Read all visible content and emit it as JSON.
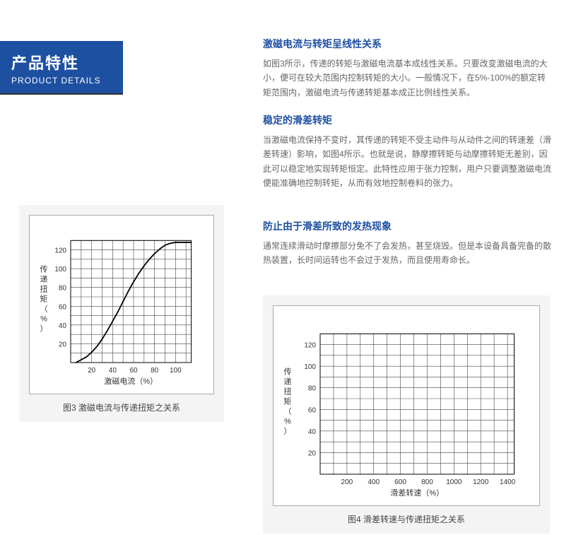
{
  "header": {
    "cn": "产品特性",
    "en": "PRODUCT DETAILS"
  },
  "sections": [
    {
      "title": "激磁电流与转矩呈线性关系",
      "body": "如图3所示，传递的转矩与激磁电流基本成线性关系。只要改变激磁电流的大小，便可在较大范围内控制转矩的大小。一般情况下，在5%-100%的额定转矩范围内，激磁电流与传递转矩基本成正比例线性关系。"
    },
    {
      "title": "稳定的滑差转矩",
      "body": "当激磁电流保持不变时，其传递的转矩不受主动件与从动件之间的转速差（滑差转速）影响，如图4所示。也就是说，静摩擦转矩与动摩擦转矩无差别，因此可以稳定地实现转矩恒定。此特性应用于张力控制，用户只要调整激磁电流便能准确地控制转矩，从而有效地控制卷料的张力。"
    },
    {
      "title": "防止由于滑差所致的发热现象",
      "body": "通常连续滑动时摩擦部分免不了会发热，甚至烧毁。但是本设备具备完备的散热装置，长时间运转也不会过于发热，而且使用寿命长。"
    }
  ],
  "chart3": {
    "caption": "图3 激磁电流与传递扭矩之关系",
    "xlabel": "激磁电流（%）",
    "ylabel": "传递扭矩（%）",
    "xticks": [
      20,
      40,
      60,
      80,
      100
    ],
    "yticks": [
      20,
      40,
      60,
      80,
      100,
      120
    ],
    "xlim": [
      0,
      120
    ],
    "ylim": [
      0,
      140
    ],
    "grid_color": "#444",
    "curve_color": "#000",
    "curve": [
      [
        5,
        0
      ],
      [
        10,
        3
      ],
      [
        15,
        6
      ],
      [
        20,
        11
      ],
      [
        25,
        17
      ],
      [
        30,
        25
      ],
      [
        35,
        34
      ],
      [
        40,
        44
      ],
      [
        45,
        54
      ],
      [
        50,
        65
      ],
      [
        55,
        76
      ],
      [
        60,
        86
      ],
      [
        65,
        95
      ],
      [
        70,
        103
      ],
      [
        75,
        110
      ],
      [
        80,
        116
      ],
      [
        85,
        121
      ],
      [
        90,
        125
      ],
      [
        95,
        127
      ],
      [
        100,
        128
      ],
      [
        115,
        128
      ]
    ]
  },
  "chart4": {
    "caption": "图4 滑差转速与传递扭矩之关系",
    "xlabel": "滑差转速（%）",
    "ylabel": "传递扭矩（%）",
    "xticks": [
      200,
      400,
      600,
      800,
      1000,
      1200,
      1400
    ],
    "yticks": [
      20,
      40,
      60,
      80,
      100,
      120
    ],
    "xlim": [
      0,
      1500
    ],
    "ylim": [
      0,
      140
    ],
    "grid_color": "#444"
  }
}
